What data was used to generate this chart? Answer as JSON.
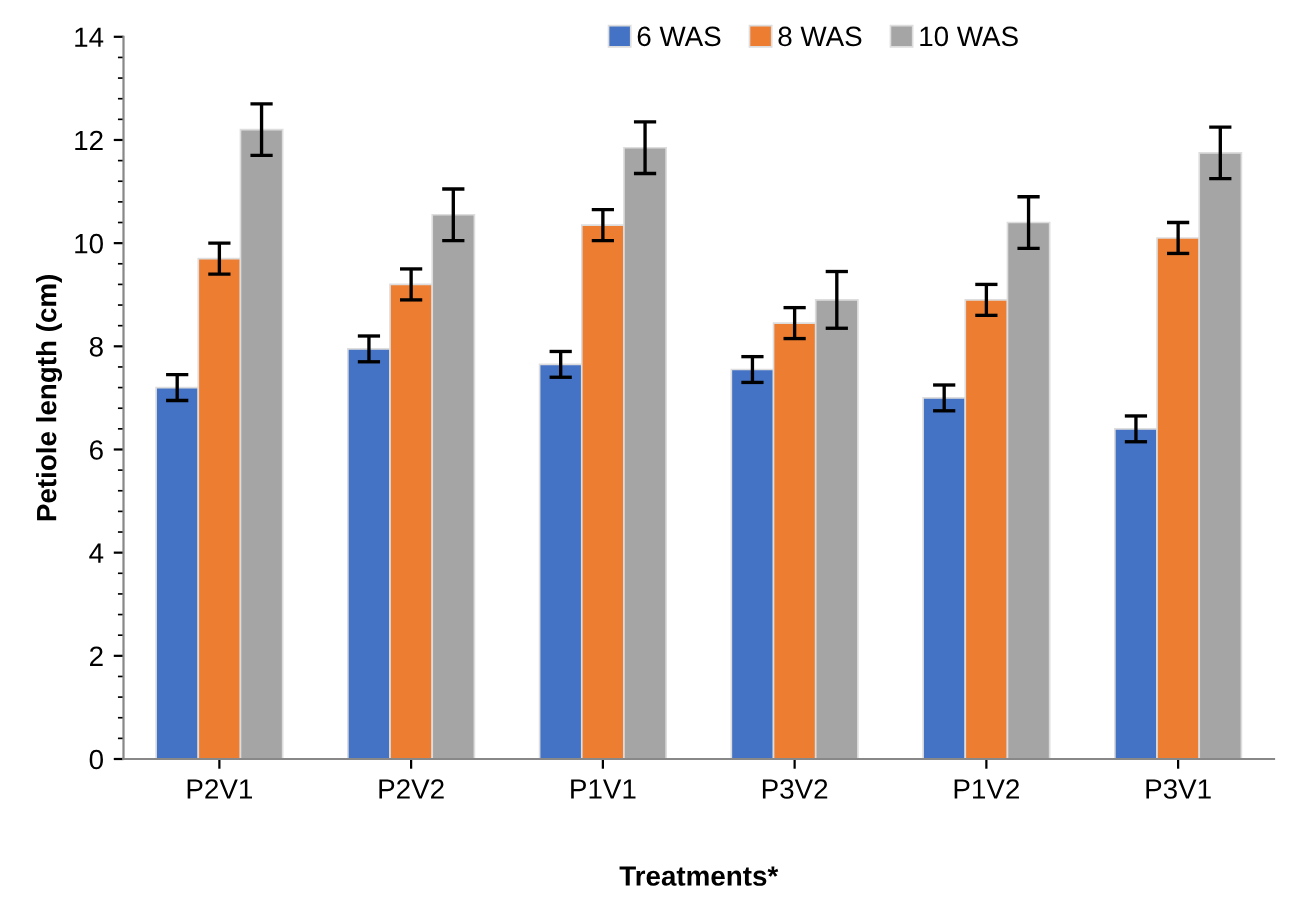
{
  "chart_data": {
    "type": "bar",
    "xlabel": "Treatments*",
    "ylabel": "Petiole length (cm)",
    "categories": [
      "P2V1",
      "P2V2",
      "P1V1",
      "P3V2",
      "P1V2",
      "P3V1"
    ],
    "series": [
      {
        "name": "6 WAS",
        "color": "#4472c4",
        "values": [
          7.2,
          7.95,
          7.65,
          7.55,
          7.0,
          6.4
        ],
        "errors": [
          0.25,
          0.25,
          0.25,
          0.25,
          0.25,
          0.25
        ]
      },
      {
        "name": "8 WAS",
        "color": "#ed7d31",
        "values": [
          9.7,
          9.2,
          10.35,
          8.45,
          8.9,
          10.1
        ],
        "errors": [
          0.3,
          0.3,
          0.3,
          0.3,
          0.3,
          0.3
        ]
      },
      {
        "name": "10 WAS",
        "color": "#a5a5a5",
        "values": [
          12.2,
          10.55,
          11.85,
          8.9,
          10.4,
          11.75
        ],
        "errors": [
          0.5,
          0.5,
          0.5,
          0.55,
          0.5,
          0.5
        ]
      }
    ],
    "ylim": [
      0,
      14
    ],
    "yticks": [
      0,
      2,
      4,
      6,
      8,
      10,
      12,
      14
    ],
    "grid": false,
    "legend": "top"
  }
}
